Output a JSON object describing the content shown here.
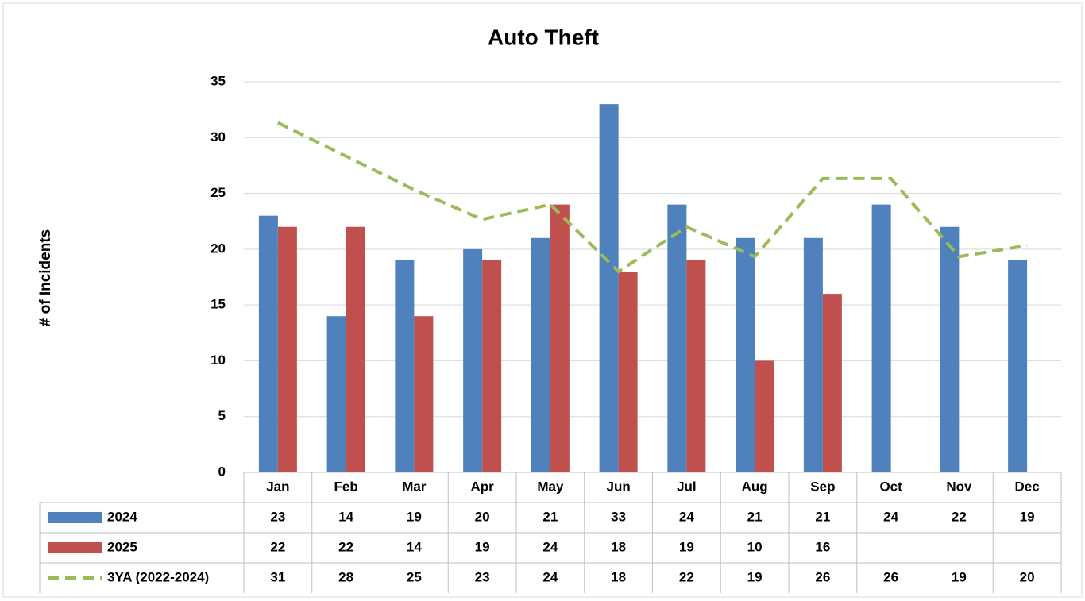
{
  "chart_data": {
    "type": "bar",
    "title": "Auto Theft",
    "y_label": "# of Incidents",
    "categories": [
      "Jan",
      "Feb",
      "Mar",
      "Apr",
      "May",
      "Jun",
      "Jul",
      "Aug",
      "Sep",
      "Oct",
      "Nov",
      "Dec"
    ],
    "series": [
      {
        "name": "2024",
        "type": "bar",
        "color": "#4f81bd",
        "values": [
          23,
          14,
          19,
          20,
          21,
          33,
          24,
          21,
          21,
          24,
          22,
          19
        ]
      },
      {
        "name": "2025",
        "type": "bar",
        "color": "#c0504d",
        "values": [
          22,
          22,
          14,
          19,
          24,
          18,
          19,
          10,
          16,
          null,
          null,
          null
        ]
      },
      {
        "name": "3YA (2022-2024)",
        "type": "line",
        "dashed": true,
        "color": "#9bbb59",
        "values": [
          31.33,
          28.33,
          25.33,
          22.67,
          24,
          18,
          22,
          19.33,
          26.33,
          26.33,
          19.33,
          20.33
        ],
        "value_labels": [
          "31",
          "28",
          "25",
          "23",
          "24",
          "18",
          "22",
          "19",
          "26",
          "26",
          "19",
          "20"
        ]
      }
    ],
    "ylim": [
      0,
      35
    ],
    "yticks": [
      0,
      5,
      10,
      15,
      20,
      25,
      30,
      35
    ],
    "grid": true,
    "data_table": true
  }
}
